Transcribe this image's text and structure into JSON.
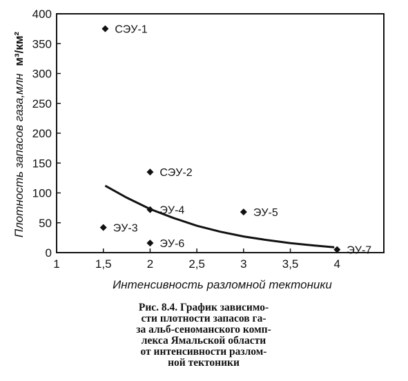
{
  "chart_data": {
    "type": "scatter",
    "xlabel": "Интенсивность разломной тектоники",
    "ylabel": "Плотность запасов газа,млн",
    "ylabel_unit": "м³/км²",
    "xlim": [
      1,
      4.5
    ],
    "ylim": [
      0,
      400
    ],
    "x_ticks": [
      1,
      1.5,
      2,
      2.5,
      3,
      3.5,
      4
    ],
    "x_tick_labels": [
      "1",
      "1,5",
      "2",
      "2,5",
      "3",
      "3,5",
      "4"
    ],
    "y_ticks": [
      0,
      50,
      100,
      150,
      200,
      250,
      300,
      350,
      400
    ],
    "y_tick_labels": [
      "0",
      "50",
      "100",
      "150",
      "200",
      "250",
      "300",
      "350",
      "400"
    ],
    "grid": false,
    "points": [
      {
        "label": "СЭУ-1",
        "x": 1.52,
        "y": 375
      },
      {
        "label": "СЭУ-2",
        "x": 2.0,
        "y": 135
      },
      {
        "label": "ЭУ-4",
        "x": 2.0,
        "y": 72
      },
      {
        "label": "ЭУ-5",
        "x": 3.0,
        "y": 68
      },
      {
        "label": "ЭУ-3",
        "x": 1.5,
        "y": 42
      },
      {
        "label": "ЭУ-6",
        "x": 2.0,
        "y": 16
      },
      {
        "label": "ЭУ-7",
        "x": 4.0,
        "y": 5
      }
    ],
    "trend": {
      "x": [
        1.52,
        1.75,
        2.0,
        2.25,
        2.5,
        2.75,
        3.0,
        3.25,
        3.5,
        3.75,
        3.97
      ],
      "y": [
        112,
        92,
        73,
        58,
        45,
        35,
        27,
        21,
        16,
        12,
        9
      ]
    }
  },
  "caption_lines": [
    "Рис. 8.4. График зависимо-",
    "сти плотности запасов га-",
    "за альб-сеноманского комп-",
    "лекса Ямальской области",
    "от интенсивности разлом-",
    "ной тектоники"
  ]
}
